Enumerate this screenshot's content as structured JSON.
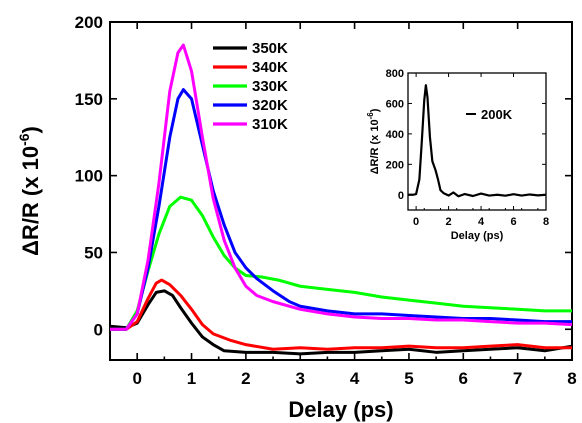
{
  "chart_data": [
    {
      "type": "line",
      "title": "",
      "xlabel": "Delay (ps)",
      "ylabel_main": "ΔR/R (x 10",
      "ylabel_exp": "-6",
      "ylabel_close": ")",
      "xlim": [
        -0.5,
        8
      ],
      "ylim": [
        -20,
        200
      ],
      "xticks": [
        0,
        1,
        2,
        3,
        4,
        5,
        6,
        7,
        8
      ],
      "yticks": [
        0,
        50,
        100,
        150,
        200
      ],
      "xtick_labels": [
        "0",
        "1",
        "2",
        "3",
        "4",
        "5",
        "6",
        "7",
        "8"
      ],
      "ytick_labels": [
        "0",
        "50",
        "100",
        "150",
        "200"
      ],
      "legend_position": "top-center",
      "series": [
        {
          "name": "350K",
          "color": "#000000",
          "points": [
            [
              -0.5,
              2
            ],
            [
              -0.2,
              1
            ],
            [
              0,
              4
            ],
            [
              0.2,
              16
            ],
            [
              0.35,
              24
            ],
            [
              0.5,
              25
            ],
            [
              0.65,
              22
            ],
            [
              0.8,
              14
            ],
            [
              1.0,
              4
            ],
            [
              1.2,
              -5
            ],
            [
              1.4,
              -10
            ],
            [
              1.6,
              -14
            ],
            [
              2,
              -15
            ],
            [
              2.5,
              -15
            ],
            [
              3,
              -16
            ],
            [
              3.5,
              -15
            ],
            [
              4,
              -15
            ],
            [
              4.5,
              -14
            ],
            [
              5,
              -13
            ],
            [
              5.5,
              -15
            ],
            [
              6,
              -14
            ],
            [
              6.5,
              -13
            ],
            [
              7,
              -12
            ],
            [
              7.5,
              -14
            ],
            [
              8,
              -11
            ]
          ]
        },
        {
          "name": "340K",
          "color": "#ff0000",
          "points": [
            [
              -0.5,
              0
            ],
            [
              -0.2,
              0
            ],
            [
              0,
              5
            ],
            [
              0.2,
              20
            ],
            [
              0.35,
              30
            ],
            [
              0.45,
              32
            ],
            [
              0.6,
              29
            ],
            [
              0.8,
              22
            ],
            [
              1.0,
              13
            ],
            [
              1.2,
              3
            ],
            [
              1.4,
              -3
            ],
            [
              1.7,
              -7
            ],
            [
              2,
              -10
            ],
            [
              2.5,
              -13
            ],
            [
              3,
              -12
            ],
            [
              3.5,
              -13
            ],
            [
              4,
              -12
            ],
            [
              4.5,
              -12
            ],
            [
              5,
              -11
            ],
            [
              5.5,
              -12
            ],
            [
              6,
              -12
            ],
            [
              6.5,
              -11
            ],
            [
              7,
              -10
            ],
            [
              7.5,
              -12
            ],
            [
              8,
              -12
            ]
          ]
        },
        {
          "name": "330K",
          "color": "#00ff00",
          "points": [
            [
              -0.5,
              0
            ],
            [
              -0.2,
              0
            ],
            [
              0,
              12
            ],
            [
              0.2,
              38
            ],
            [
              0.4,
              62
            ],
            [
              0.6,
              80
            ],
            [
              0.8,
              86
            ],
            [
              1.0,
              84
            ],
            [
              1.2,
              74
            ],
            [
              1.4,
              60
            ],
            [
              1.6,
              48
            ],
            [
              1.8,
              40
            ],
            [
              2.0,
              35
            ],
            [
              2.3,
              34
            ],
            [
              2.6,
              32
            ],
            [
              3,
              28
            ],
            [
              3.5,
              26
            ],
            [
              4,
              24
            ],
            [
              4.5,
              21
            ],
            [
              5,
              19
            ],
            [
              5.5,
              17
            ],
            [
              6,
              15
            ],
            [
              6.5,
              14
            ],
            [
              7,
              13
            ],
            [
              7.5,
              12
            ],
            [
              8,
              12
            ]
          ]
        },
        {
          "name": "320K",
          "color": "#0000ff",
          "points": [
            [
              -0.5,
              0
            ],
            [
              -0.2,
              0
            ],
            [
              0,
              10
            ],
            [
              0.2,
              40
            ],
            [
              0.4,
              80
            ],
            [
              0.6,
              125
            ],
            [
              0.75,
              150
            ],
            [
              0.85,
              156
            ],
            [
              1.0,
              150
            ],
            [
              1.2,
              120
            ],
            [
              1.4,
              90
            ],
            [
              1.6,
              68
            ],
            [
              1.8,
              50
            ],
            [
              2.0,
              40
            ],
            [
              2.2,
              33
            ],
            [
              2.5,
              25
            ],
            [
              2.8,
              18
            ],
            [
              3,
              15
            ],
            [
              3.5,
              12
            ],
            [
              4,
              10
            ],
            [
              4.5,
              10
            ],
            [
              5,
              9
            ],
            [
              5.5,
              8
            ],
            [
              6,
              7
            ],
            [
              6.5,
              7
            ],
            [
              7,
              6
            ],
            [
              7.5,
              5
            ],
            [
              8,
              5
            ]
          ]
        },
        {
          "name": "310K",
          "color": "#ff00ff",
          "points": [
            [
              -0.5,
              0
            ],
            [
              -0.2,
              0
            ],
            [
              0,
              10
            ],
            [
              0.2,
              45
            ],
            [
              0.4,
              95
            ],
            [
              0.6,
              155
            ],
            [
              0.75,
              180
            ],
            [
              0.85,
              185
            ],
            [
              1.0,
              168
            ],
            [
              1.2,
              125
            ],
            [
              1.4,
              85
            ],
            [
              1.6,
              58
            ],
            [
              1.8,
              40
            ],
            [
              2.0,
              28
            ],
            [
              2.2,
              22
            ],
            [
              2.5,
              18
            ],
            [
              3,
              13
            ],
            [
              3.5,
              10
            ],
            [
              4,
              8
            ],
            [
              4.5,
              7
            ],
            [
              5,
              7
            ],
            [
              5.5,
              6
            ],
            [
              6,
              6
            ],
            [
              6.5,
              5
            ],
            [
              7,
              4
            ],
            [
              7.5,
              4
            ],
            [
              8,
              3
            ]
          ]
        }
      ]
    },
    {
      "type": "line",
      "title": "",
      "xlabel": "Delay (ps)",
      "ylabel_main": "ΔR/R (x 10",
      "ylabel_exp": "-6",
      "ylabel_close": ")",
      "xlim": [
        -0.5,
        8
      ],
      "ylim": [
        -100,
        800
      ],
      "xticks": [
        0,
        2,
        4,
        6,
        8
      ],
      "yticks": [
        0,
        200,
        400,
        600,
        800
      ],
      "xtick_labels": [
        "0",
        "2",
        "4",
        "6",
        "8"
      ],
      "ytick_labels": [
        "0",
        "200",
        "400",
        "600",
        "800"
      ],
      "legend_position": "right",
      "series": [
        {
          "name": "200K",
          "color": "#000000",
          "points": [
            [
              -0.5,
              0
            ],
            [
              -0.2,
              0
            ],
            [
              0,
              5
            ],
            [
              0.2,
              100
            ],
            [
              0.35,
              350
            ],
            [
              0.5,
              620
            ],
            [
              0.6,
              720
            ],
            [
              0.7,
              640
            ],
            [
              0.85,
              380
            ],
            [
              1.0,
              220
            ],
            [
              1.2,
              160
            ],
            [
              1.35,
              100
            ],
            [
              1.5,
              30
            ],
            [
              1.7,
              10
            ],
            [
              2,
              -5
            ],
            [
              2.3,
              15
            ],
            [
              2.6,
              -10
            ],
            [
              3,
              5
            ],
            [
              3.5,
              -8
            ],
            [
              4,
              8
            ],
            [
              4.5,
              -5
            ],
            [
              5,
              0
            ],
            [
              5.5,
              -6
            ],
            [
              6,
              4
            ],
            [
              6.5,
              -5
            ],
            [
              7,
              2
            ],
            [
              7.5,
              -4
            ],
            [
              8,
              0
            ]
          ]
        }
      ]
    }
  ],
  "main": {
    "xlabel": "Delay (ps)"
  },
  "inset": {
    "legend_label": "200K"
  }
}
